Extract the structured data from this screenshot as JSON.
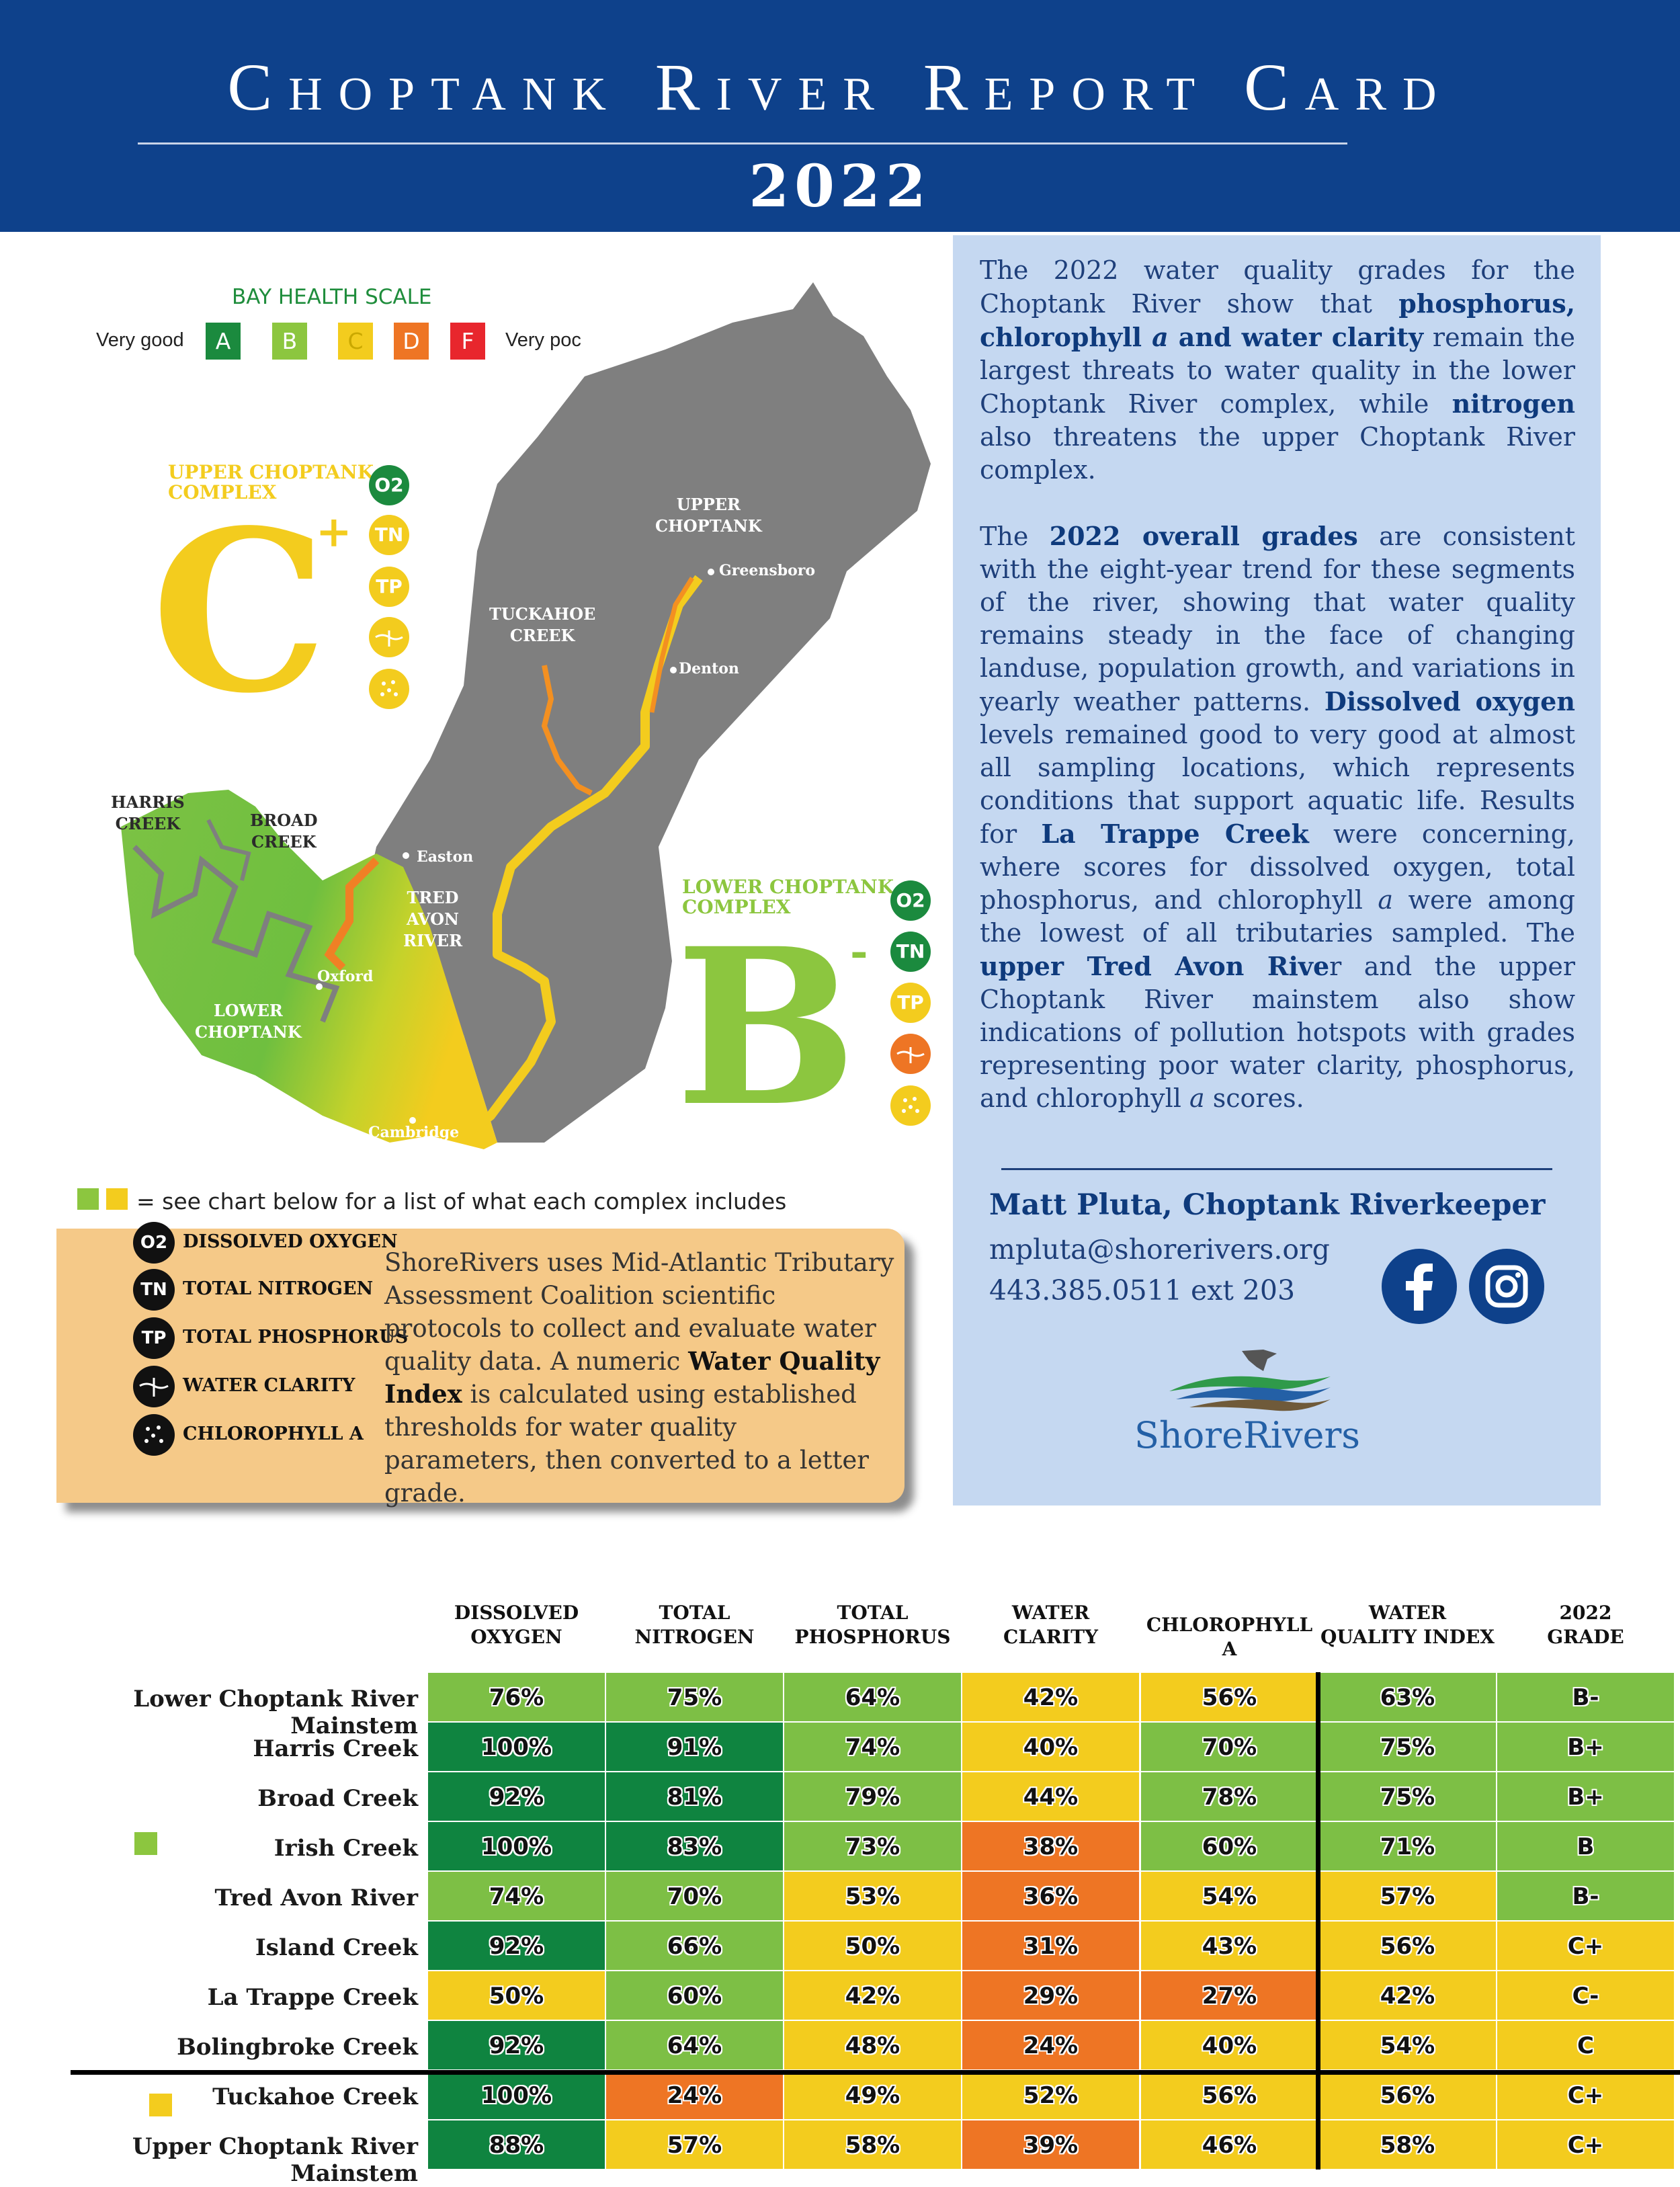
{
  "header": {
    "title": "Choptank River Report Card",
    "year": "2022"
  },
  "scale": {
    "title": "BAY HEALTH SCALE",
    "left_label": "Very good",
    "right_label": "Very poc",
    "grades": [
      {
        "letter": "A",
        "color": "#1b8a3e"
      },
      {
        "letter": "B",
        "color": "#8cc63f"
      },
      {
        "letter": "C",
        "color": "#f3cc1e"
      },
      {
        "letter": "D",
        "color": "#ee7524"
      },
      {
        "letter": "F",
        "color": "#e8262d"
      }
    ]
  },
  "upper_complex": {
    "name_line1": "UPPER CHOPTANK",
    "name_line2": "COMPLEX",
    "grade": "C",
    "modifier": "+",
    "color": "#f3cc1e"
  },
  "lower_complex": {
    "name_line1": "LOWER CHOPTANK",
    "name_line2": "COMPLEX",
    "grade": "B",
    "modifier": "-",
    "color": "#8cc63f"
  },
  "map_labels": {
    "upper_choptank": [
      "UPPER",
      "CHOPTANK"
    ],
    "tuckahoe": [
      "TUCKAHOE",
      "CREEK"
    ],
    "harris": [
      "HARRIS",
      "CREEK"
    ],
    "broad": [
      "BROAD",
      "CREEK"
    ],
    "tred_avon": [
      "TRED",
      "AVON",
      "RIVER"
    ],
    "lower_choptank": [
      "LOWER",
      "CHOPTANK"
    ],
    "towns": {
      "greensboro": "Greensboro",
      "denton": "Denton",
      "easton": "Easton",
      "oxford": "Oxford",
      "cambridge": "Cambridge"
    }
  },
  "indicator_icons": {
    "o2": "O2",
    "tn": "TN",
    "tp": "TP"
  },
  "intro": {
    "p1": {
      "t1": "The 2022 water quality grades for the Choptank River show that ",
      "b1": "phosphorus, chlorophyll ",
      "b1i": "a",
      "b2": " and water clarity",
      "t2": " remain the largest threats to water quality in the lower Choptank River complex, while ",
      "b3": "nitrogen",
      "t3": " also threatens the upper Choptank River complex."
    },
    "p2": {
      "t1": "The ",
      "b1": "2022 overall grades",
      "t2": " are consistent with the eight-year trend for these segments of the river, showing that water quality remains steady in the face of changing landuse, population growth, and variations in yearly weather patterns. ",
      "b2": "Dissolved oxygen",
      "t3": " levels remained good to very good at almost all sampling locations, which represents conditions that support aquatic life. Results for ",
      "b3": "La Trappe Creek",
      "t4": " were concerning, where scores for dissolved oxygen, total phosphorus, and chlorophyll ",
      "i1": "a",
      "t5": " were among the lowest of all tributaries sampled. The ",
      "b4": "upper Tred Avon Rive",
      "t6": "r and the upper Choptank River mainstem also show indications of pollution hotspots with grades representing poor water clarity, phosphorus, and chlorophyll ",
      "i2": "a",
      "t7": " scores."
    }
  },
  "contact": {
    "name": "Matt Pluta, Choptank Riverkeeper",
    "email": "mpluta@shorerivers.org",
    "phone": "443.385.0511 ext 203",
    "logo_text": "ShoreRivers"
  },
  "key_note": "= see chart below for a list of what each complex includes",
  "legend": {
    "items": [
      {
        "icon": "O2",
        "label": "DISSOLVED OXYGEN"
      },
      {
        "icon": "TN",
        "label": "TOTAL NITROGEN"
      },
      {
        "icon": "TP",
        "label": "TOTAL PHOSPHORUS"
      },
      {
        "icon": "",
        "label": "WATER CLARITY"
      },
      {
        "icon": "",
        "label": "CHLOROPHYLL A"
      }
    ],
    "text_t1": "ShoreRivers uses Mid-Atlantic Tributary Assessment Coalition scientific protocols to collect and evaluate water quality data. A numeric ",
    "text_b": "Water Quality Index",
    "text_t2": " is calculated using established thresholds for water quality parameters, then converted to a letter grade."
  },
  "table": {
    "headers": [
      [
        "DISSOLVED",
        "OXYGEN"
      ],
      [
        "TOTAL",
        "NITROGEN"
      ],
      [
        "TOTAL",
        "PHOSPHORUS"
      ],
      [
        "WATER",
        "CLARITY"
      ],
      [
        "CHLOROPHYLL A",
        ""
      ],
      [
        "WATER",
        "QUALITY INDEX"
      ],
      [
        "2022",
        "GRADE"
      ]
    ],
    "rows": [
      {
        "name": "Lower Choptank River Mainstem",
        "values": [
          "76%",
          "75%",
          "64%",
          "42%",
          "56%",
          "63%",
          "B-"
        ],
        "colors": [
          "#7dbf45",
          "#7dbf45",
          "#7dbf45",
          "#f3cc1e",
          "#f3cc1e",
          "#7dbf45",
          "#7dbf45"
        ]
      },
      {
        "name": "Harris Creek",
        "values": [
          "100%",
          "91%",
          "74%",
          "40%",
          "70%",
          "75%",
          "B+"
        ],
        "colors": [
          "#0f8440",
          "#0f8440",
          "#7dbf45",
          "#f3cc1e",
          "#7dbf45",
          "#7dbf45",
          "#7dbf45"
        ]
      },
      {
        "name": "Broad Creek",
        "values": [
          "92%",
          "81%",
          "79%",
          "44%",
          "78%",
          "75%",
          "B+"
        ],
        "colors": [
          "#0f8440",
          "#0f8440",
          "#7dbf45",
          "#f3cc1e",
          "#7dbf45",
          "#7dbf45",
          "#7dbf45"
        ]
      },
      {
        "name": "Irish Creek",
        "values": [
          "100%",
          "83%",
          "73%",
          "38%",
          "60%",
          "71%",
          "B"
        ],
        "colors": [
          "#0f8440",
          "#0f8440",
          "#7dbf45",
          "#ee7524",
          "#7dbf45",
          "#7dbf45",
          "#7dbf45"
        ]
      },
      {
        "name": "Tred Avon River",
        "values": [
          "74%",
          "70%",
          "53%",
          "36%",
          "54%",
          "57%",
          "B-"
        ],
        "colors": [
          "#7dbf45",
          "#7dbf45",
          "#f3cc1e",
          "#ee7524",
          "#f3cc1e",
          "#f3cc1e",
          "#7dbf45"
        ]
      },
      {
        "name": "Island Creek",
        "values": [
          "92%",
          "66%",
          "50%",
          "31%",
          "43%",
          "56%",
          "C+"
        ],
        "colors": [
          "#0f8440",
          "#7dbf45",
          "#f3cc1e",
          "#ee7524",
          "#f3cc1e",
          "#f3cc1e",
          "#f3cc1e"
        ]
      },
      {
        "name": "La Trappe Creek",
        "values": [
          "50%",
          "60%",
          "42%",
          "29%",
          "27%",
          "42%",
          "C-"
        ],
        "colors": [
          "#f3cc1e",
          "#7dbf45",
          "#f3cc1e",
          "#ee7524",
          "#ee7524",
          "#f3cc1e",
          "#f3cc1e"
        ]
      },
      {
        "name": "Bolingbroke Creek",
        "values": [
          "92%",
          "64%",
          "48%",
          "24%",
          "40%",
          "54%",
          "C"
        ],
        "colors": [
          "#0f8440",
          "#7dbf45",
          "#f3cc1e",
          "#ee7524",
          "#f3cc1e",
          "#f3cc1e",
          "#f3cc1e"
        ]
      },
      {
        "name": "Tuckahoe Creek",
        "values": [
          "100%",
          "24%",
          "49%",
          "52%",
          "56%",
          "56%",
          "C+"
        ],
        "colors": [
          "#0f8440",
          "#ee7524",
          "#f3cc1e",
          "#f3cc1e",
          "#f3cc1e",
          "#f3cc1e",
          "#f3cc1e"
        ]
      },
      {
        "name": "Upper Choptank River Mainstem",
        "values": [
          "88%",
          "57%",
          "58%",
          "39%",
          "46%",
          "58%",
          "C+"
        ],
        "colors": [
          "#0f8440",
          "#f3cc1e",
          "#f3cc1e",
          "#ee7524",
          "#f3cc1e",
          "#f3cc1e",
          "#f3cc1e"
        ]
      }
    ]
  }
}
